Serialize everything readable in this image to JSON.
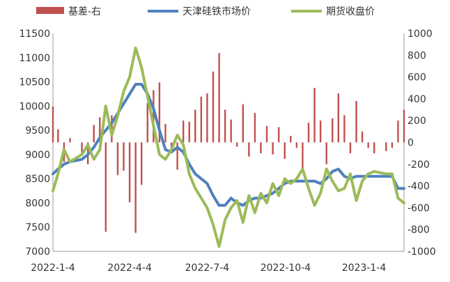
{
  "chart_data": {
    "type": "bar+line",
    "title": "",
    "legend": {
      "placement": "top",
      "entries": [
        {
          "key": "basis",
          "label": "基差-右",
          "kind": "bar",
          "color": "#c0504d"
        },
        {
          "key": "spot",
          "label": "天津硅铁市场价",
          "kind": "line",
          "color": "#4f81bd"
        },
        {
          "key": "futures",
          "label": "期货收盘价",
          "kind": "line",
          "color": "#9bbb59"
        }
      ]
    },
    "x_axis": {
      "type": "date",
      "range": [
        "2022-01-04",
        "2023-02-20"
      ],
      "tick_labels": [
        "2022-1-4",
        "2022-4-4",
        "2022-7-4",
        "2022-10-4",
        "2023-1-4"
      ]
    },
    "y_left": {
      "range": [
        7000,
        11500
      ],
      "tick_labels": [
        "7000",
        "7500",
        "8000",
        "8500",
        "9000",
        "9500",
        "10000",
        "10500",
        "11000",
        "11500"
      ]
    },
    "y_right": {
      "range": [
        -1000,
        1000
      ],
      "tick_labels": [
        "-1000",
        "-800",
        "-600",
        "-400",
        "-200",
        "0",
        "200",
        "400",
        "600",
        "800",
        "1000"
      ]
    },
    "grid": false,
    "series": [
      {
        "name": "天津硅铁市场价",
        "axis": "left",
        "points": [
          [
            "2022-01-04",
            8600
          ],
          [
            "2022-01-10",
            8700
          ],
          [
            "2022-01-17",
            8800
          ],
          [
            "2022-01-24",
            8850
          ],
          [
            "2022-02-07",
            8900
          ],
          [
            "2022-02-14",
            9000
          ],
          [
            "2022-02-21",
            9150
          ],
          [
            "2022-02-28",
            9350
          ],
          [
            "2022-03-07",
            9500
          ],
          [
            "2022-03-14",
            9650
          ],
          [
            "2022-03-21",
            9850
          ],
          [
            "2022-03-28",
            10050
          ],
          [
            "2022-04-04",
            10250
          ],
          [
            "2022-04-11",
            10450
          ],
          [
            "2022-04-18",
            10450
          ],
          [
            "2022-04-25",
            10250
          ],
          [
            "2022-05-02",
            9950
          ],
          [
            "2022-05-09",
            9500
          ],
          [
            "2022-05-16",
            9100
          ],
          [
            "2022-05-23",
            9050
          ],
          [
            "2022-05-30",
            9150
          ],
          [
            "2022-06-06",
            9050
          ],
          [
            "2022-06-13",
            8800
          ],
          [
            "2022-06-20",
            8600
          ],
          [
            "2022-06-27",
            8500
          ],
          [
            "2022-07-04",
            8400
          ],
          [
            "2022-07-11",
            8150
          ],
          [
            "2022-07-18",
            7950
          ],
          [
            "2022-07-25",
            7950
          ],
          [
            "2022-08-01",
            8100
          ],
          [
            "2022-08-08",
            8000
          ],
          [
            "2022-08-15",
            7950
          ],
          [
            "2022-08-22",
            8050
          ],
          [
            "2022-08-29",
            8100
          ],
          [
            "2022-09-05",
            8100
          ],
          [
            "2022-09-12",
            8150
          ],
          [
            "2022-09-19",
            8200
          ],
          [
            "2022-09-26",
            8300
          ],
          [
            "2022-10-03",
            8400
          ],
          [
            "2022-10-10",
            8450
          ],
          [
            "2022-10-17",
            8450
          ],
          [
            "2022-10-24",
            8450
          ],
          [
            "2022-10-31",
            8450
          ],
          [
            "2022-11-07",
            8450
          ],
          [
            "2022-11-14",
            8400
          ],
          [
            "2022-11-21",
            8500
          ],
          [
            "2022-11-28",
            8650
          ],
          [
            "2022-12-05",
            8700
          ],
          [
            "2022-12-12",
            8550
          ],
          [
            "2022-12-19",
            8500
          ],
          [
            "2022-12-26",
            8550
          ],
          [
            "2023-01-02",
            8550
          ],
          [
            "2023-01-09",
            8550
          ],
          [
            "2023-01-16",
            8550
          ],
          [
            "2023-01-30",
            8550
          ],
          [
            "2023-02-06",
            8550
          ],
          [
            "2023-02-13",
            8300
          ],
          [
            "2023-02-20",
            8300
          ]
        ]
      },
      {
        "name": "期货收盘价",
        "axis": "left",
        "points": [
          [
            "2022-01-04",
            8250
          ],
          [
            "2022-01-10",
            8600
          ],
          [
            "2022-01-17",
            9100
          ],
          [
            "2022-01-24",
            8850
          ],
          [
            "2022-02-07",
            9000
          ],
          [
            "2022-02-14",
            9200
          ],
          [
            "2022-02-21",
            8900
          ],
          [
            "2022-02-28",
            9100
          ],
          [
            "2022-03-07",
            10000
          ],
          [
            "2022-03-14",
            9400
          ],
          [
            "2022-03-21",
            9800
          ],
          [
            "2022-03-28",
            10300
          ],
          [
            "2022-04-04",
            10600
          ],
          [
            "2022-04-11",
            11200
          ],
          [
            "2022-04-18",
            10800
          ],
          [
            "2022-04-25",
            10200
          ],
          [
            "2022-05-02",
            9600
          ],
          [
            "2022-05-09",
            9000
          ],
          [
            "2022-05-16",
            8900
          ],
          [
            "2022-05-23",
            9100
          ],
          [
            "2022-05-30",
            9400
          ],
          [
            "2022-06-06",
            9200
          ],
          [
            "2022-06-13",
            8600
          ],
          [
            "2022-06-20",
            8300
          ],
          [
            "2022-06-27",
            8100
          ],
          [
            "2022-07-04",
            7900
          ],
          [
            "2022-07-11",
            7550
          ],
          [
            "2022-07-18",
            7100
          ],
          [
            "2022-07-25",
            7650
          ],
          [
            "2022-08-01",
            7900
          ],
          [
            "2022-08-08",
            8050
          ],
          [
            "2022-08-15",
            7600
          ],
          [
            "2022-08-22",
            8150
          ],
          [
            "2022-08-29",
            7800
          ],
          [
            "2022-09-05",
            8200
          ],
          [
            "2022-09-12",
            8000
          ],
          [
            "2022-09-19",
            8400
          ],
          [
            "2022-09-26",
            8150
          ],
          [
            "2022-10-03",
            8500
          ],
          [
            "2022-10-10",
            8400
          ],
          [
            "2022-10-17",
            8500
          ],
          [
            "2022-10-24",
            8700
          ],
          [
            "2022-10-31",
            8300
          ],
          [
            "2022-11-07",
            7950
          ],
          [
            "2022-11-14",
            8200
          ],
          [
            "2022-11-21",
            8700
          ],
          [
            "2022-11-28",
            8450
          ],
          [
            "2022-12-05",
            8250
          ],
          [
            "2022-12-12",
            8300
          ],
          [
            "2022-12-19",
            8600
          ],
          [
            "2022-12-26",
            8050
          ],
          [
            "2023-01-02",
            8450
          ],
          [
            "2023-01-09",
            8600
          ],
          [
            "2023-01-16",
            8650
          ],
          [
            "2023-01-30",
            8600
          ],
          [
            "2023-02-06",
            8600
          ],
          [
            "2023-02-13",
            8100
          ],
          [
            "2023-02-20",
            8000
          ]
        ]
      },
      {
        "name": "基差-右",
        "axis": "right",
        "type": "bar",
        "points": [
          [
            "2022-01-04",
            330
          ],
          [
            "2022-01-10",
            120
          ],
          [
            "2022-01-17",
            -180
          ],
          [
            "2022-01-24",
            40
          ],
          [
            "2022-02-07",
            -120
          ],
          [
            "2022-02-14",
            -200
          ],
          [
            "2022-02-21",
            160
          ],
          [
            "2022-02-28",
            230
          ],
          [
            "2022-03-07",
            -820
          ],
          [
            "2022-03-14",
            250
          ],
          [
            "2022-03-21",
            -300
          ],
          [
            "2022-03-28",
            -260
          ],
          [
            "2022-04-04",
            -550
          ],
          [
            "2022-04-11",
            -830
          ],
          [
            "2022-04-18",
            -390
          ],
          [
            "2022-04-25",
            360
          ],
          [
            "2022-05-02",
            480
          ],
          [
            "2022-05-09",
            550
          ],
          [
            "2022-05-16",
            170
          ],
          [
            "2022-05-23",
            -80
          ],
          [
            "2022-05-30",
            -250
          ],
          [
            "2022-06-06",
            200
          ],
          [
            "2022-06-13",
            190
          ],
          [
            "2022-06-20",
            300
          ],
          [
            "2022-06-27",
            420
          ],
          [
            "2022-07-04",
            450
          ],
          [
            "2022-07-11",
            650
          ],
          [
            "2022-07-18",
            820
          ],
          [
            "2022-07-25",
            300
          ],
          [
            "2022-08-01",
            210
          ],
          [
            "2022-08-08",
            -40
          ],
          [
            "2022-08-15",
            350
          ],
          [
            "2022-08-22",
            -130
          ],
          [
            "2022-08-29",
            270
          ],
          [
            "2022-09-05",
            -100
          ],
          [
            "2022-09-12",
            150
          ],
          [
            "2022-09-19",
            -110
          ],
          [
            "2022-09-26",
            140
          ],
          [
            "2022-10-03",
            -150
          ],
          [
            "2022-10-10",
            60
          ],
          [
            "2022-10-17",
            -50
          ],
          [
            "2022-10-24",
            -260
          ],
          [
            "2022-10-31",
            180
          ],
          [
            "2022-11-07",
            500
          ],
          [
            "2022-11-14",
            200
          ],
          [
            "2022-11-21",
            -200
          ],
          [
            "2022-11-28",
            220
          ],
          [
            "2022-12-05",
            450
          ],
          [
            "2022-12-12",
            250
          ],
          [
            "2022-12-19",
            -100
          ],
          [
            "2022-12-26",
            380
          ],
          [
            "2023-01-02",
            100
          ],
          [
            "2023-01-09",
            -50
          ],
          [
            "2023-01-16",
            -100
          ],
          [
            "2023-01-30",
            -80
          ],
          [
            "2023-02-06",
            -50
          ],
          [
            "2023-02-13",
            200
          ],
          [
            "2023-02-20",
            300
          ]
        ]
      }
    ]
  }
}
